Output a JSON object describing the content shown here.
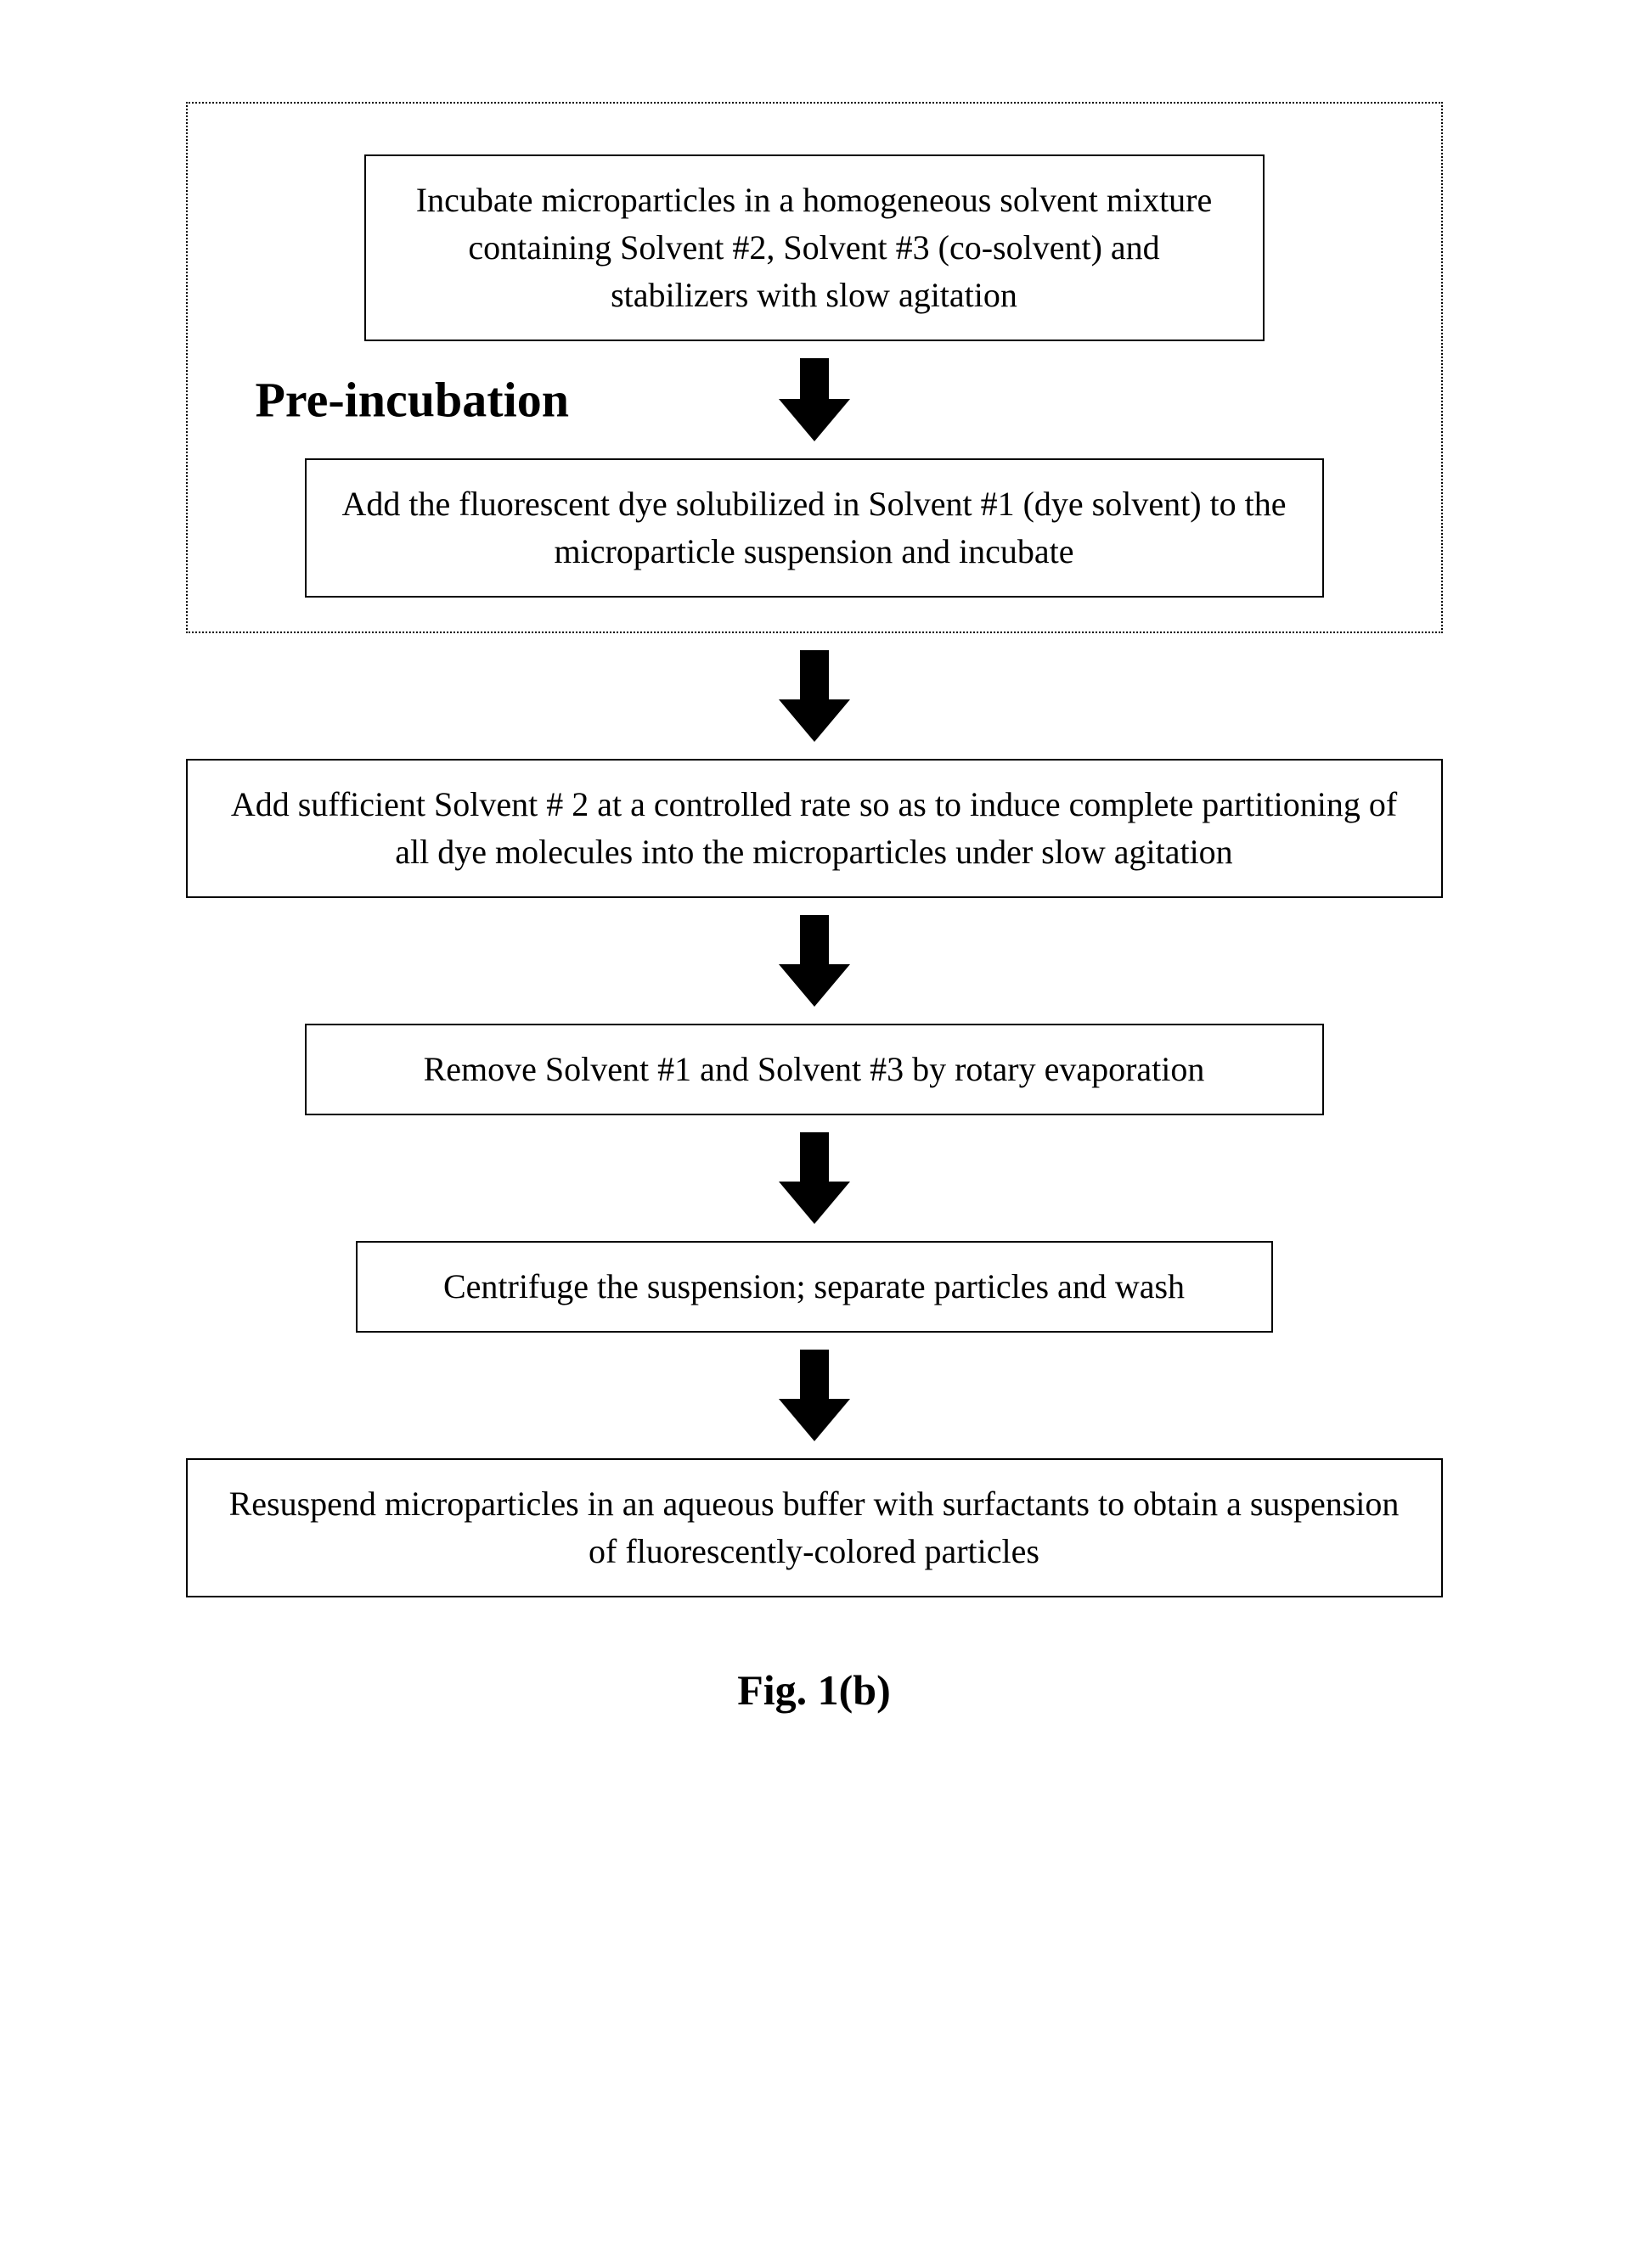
{
  "flowchart": {
    "type": "flowchart",
    "background_color": "#ffffff",
    "border_color": "#000000",
    "text_color": "#000000",
    "font_family": "Times New Roman",
    "box_fontsize": 40,
    "label_fontsize": 58,
    "caption_fontsize": 50,
    "pre_incubation_label": "Pre-incubation",
    "dotted_border_style": "dotted",
    "steps": [
      {
        "id": "step1",
        "text": "Incubate microparticles in a homogeneous solvent mixture containing Solvent #2, Solvent #3 (co-solvent) and stabilizers with slow agitation",
        "in_group": true
      },
      {
        "id": "step2",
        "text": "Add the fluorescent dye solubilized in Solvent #1 (dye solvent) to the microparticle suspension and incubate",
        "in_group": true
      },
      {
        "id": "step3",
        "text": "Add sufficient Solvent # 2 at a controlled rate so as to induce complete partitioning of all dye molecules into the microparticles under slow agitation",
        "in_group": false
      },
      {
        "id": "step4",
        "text": "Remove Solvent #1 and Solvent #3 by rotary evaporation",
        "in_group": false
      },
      {
        "id": "step5",
        "text": "Centrifuge the suspension; separate particles and wash",
        "in_group": false
      },
      {
        "id": "step6",
        "text": "Resuspend microparticles in an aqueous buffer with surfactants to obtain a suspension of fluorescently-colored particles",
        "in_group": false
      }
    ],
    "arrow_color": "#000000",
    "arrow_stem_width": 34,
    "arrow_head_width": 84,
    "caption": "Fig. 1(b)"
  }
}
